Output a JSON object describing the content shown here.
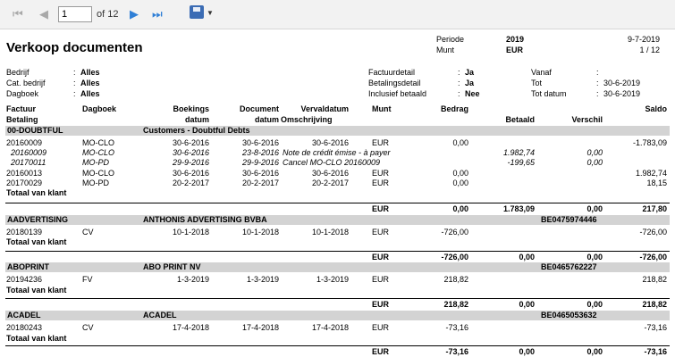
{
  "toolbar": {
    "first_icon": "⏮",
    "prev_icon": "◀",
    "page_value": "1",
    "of_label": "of 12",
    "next_icon": "▶",
    "last_icon": "⏭",
    "caret": "▼"
  },
  "report": {
    "title": "Verkoop documenten",
    "periode_label": "Periode",
    "periode_value": "2019",
    "munt_label": "Munt",
    "munt_value": "EUR",
    "date": "9-7-2019",
    "page_count": "1 / 12"
  },
  "filters": {
    "bedrijf_label": "Bedrijf",
    "bedrijf_value": "Alles",
    "cat_label": "Cat. bedrijf",
    "cat_value": "Alles",
    "dagboek_label": "Dagboek",
    "dagboek_value": "Alles",
    "factuurdetail_label": "Factuurdetail",
    "factuurdetail_value": "Ja",
    "betalingsdetail_label": "Betalingsdetail",
    "betalingsdetail_value": "Ja",
    "inclusief_label": "Inclusief betaald",
    "inclusief_value": "Nee",
    "vanaf_label": "Vanaf",
    "vanaf_value": "",
    "tot_label": "Tot",
    "tot_value": "30-6-2019",
    "totdatum_label": "Tot datum",
    "totdatum_value": "30-6-2019",
    "colon": ":"
  },
  "headers": {
    "factuur": "Factuur",
    "betaling": "Betaling",
    "dagboek": "Dagboek",
    "boekings": "Boekings",
    "boekings2": "datum",
    "document": "Document",
    "document2": "datum",
    "vervaldatum": "Vervaldatum",
    "omschrijving": "Omschrijving",
    "munt": "Munt",
    "bedrag": "Bedrag",
    "betaald": "Betaald",
    "verschil": "Verschil",
    "saldo": "Saldo"
  },
  "totaal_label": "Totaal van klant",
  "groups": [
    {
      "code": "00-DOUBTFUL",
      "name": "Customers - Doubtful Debts",
      "vat": "",
      "rows": [
        {
          "factuur": "20160009",
          "dagboek": "MO-CLO",
          "boek": "30-6-2016",
          "doc": "30-6-2016",
          "verval": "30-6-2016",
          "oms": "",
          "munt": "EUR",
          "bedrag": "0,00",
          "betaald": "",
          "verschil": "",
          "saldo": "-1.783,09",
          "italic": false
        },
        {
          "factuur": "20160009",
          "dagboek": "MO-CLO",
          "boek": "30-6-2016",
          "doc": "23-8-2016",
          "verval": "",
          "oms": "Note de crédit émise - à payer",
          "munt": "",
          "bedrag": "",
          "betaald": "1.982,74",
          "verschil": "0,00",
          "saldo": "",
          "italic": true
        },
        {
          "factuur": "20170011",
          "dagboek": "MO-PD",
          "boek": "29-9-2016",
          "doc": "29-9-2016",
          "verval": "",
          "oms": "Cancel MO-CLO 20160009",
          "munt": "",
          "bedrag": "",
          "betaald": "-199,65",
          "verschil": "0,00",
          "saldo": "",
          "italic": true
        },
        {
          "factuur": "20160013",
          "dagboek": "MO-CLO",
          "boek": "30-6-2016",
          "doc": "30-6-2016",
          "verval": "30-6-2016",
          "oms": "",
          "munt": "EUR",
          "bedrag": "0,00",
          "betaald": "",
          "verschil": "",
          "saldo": "1.982,74",
          "italic": false
        },
        {
          "factuur": "20170029",
          "dagboek": "MO-PD",
          "boek": "20-2-2017",
          "doc": "20-2-2017",
          "verval": "20-2-2017",
          "oms": "",
          "munt": "EUR",
          "bedrag": "0,00",
          "betaald": "",
          "verschil": "",
          "saldo": "18,15",
          "italic": false
        }
      ],
      "total": {
        "munt": "EUR",
        "bedrag": "0,00",
        "betaald": "1.783,09",
        "verschil": "0,00",
        "saldo": "217,80"
      }
    },
    {
      "code": "AADVERTISING",
      "name": "ANTHONIS ADVERTISING BVBA",
      "vat": "BE0475974446",
      "rows": [
        {
          "factuur": "20180139",
          "dagboek": "CV",
          "boek": "10-1-2018",
          "doc": "10-1-2018",
          "verval": "10-1-2018",
          "oms": "",
          "munt": "EUR",
          "bedrag": "-726,00",
          "betaald": "",
          "verschil": "",
          "saldo": "-726,00",
          "italic": false
        }
      ],
      "total": {
        "munt": "EUR",
        "bedrag": "-726,00",
        "betaald": "0,00",
        "verschil": "0,00",
        "saldo": "-726,00"
      }
    },
    {
      "code": "ABOPRINT",
      "name": "ABO PRINT NV",
      "vat": "BE0465762227",
      "rows": [
        {
          "factuur": "20194236",
          "dagboek": "FV",
          "boek": "1-3-2019",
          "doc": "1-3-2019",
          "verval": "1-3-2019",
          "oms": "",
          "munt": "EUR",
          "bedrag": "218,82",
          "betaald": "",
          "verschil": "",
          "saldo": "218,82",
          "italic": false
        }
      ],
      "total": {
        "munt": "EUR",
        "bedrag": "218,82",
        "betaald": "0,00",
        "verschil": "0,00",
        "saldo": "218,82"
      }
    },
    {
      "code": "ACADEL",
      "name": "ACADEL",
      "vat": "BE0465053632",
      "rows": [
        {
          "factuur": "20180243",
          "dagboek": "CV",
          "boek": "17-4-2018",
          "doc": "17-4-2018",
          "verval": "17-4-2018",
          "oms": "",
          "munt": "EUR",
          "bedrag": "-73,16",
          "betaald": "",
          "verschil": "",
          "saldo": "-73,16",
          "italic": false
        }
      ],
      "total": {
        "munt": "EUR",
        "bedrag": "-73,16",
        "betaald": "0,00",
        "verschil": "0,00",
        "saldo": "-73,16"
      }
    }
  ]
}
